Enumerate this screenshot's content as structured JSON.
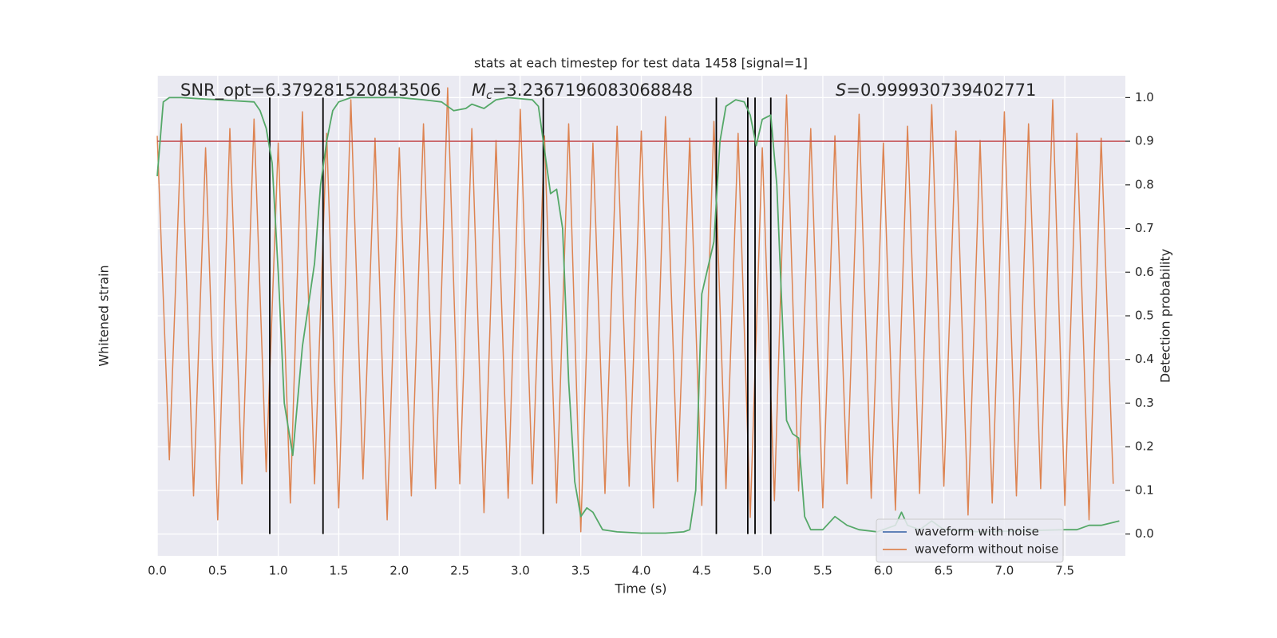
{
  "chart_data": {
    "type": "line",
    "title": "stats at each timestep for test data 1458 [signal=1]",
    "xlabel": "Time (s)",
    "ylabel": "Whitened strain",
    "y2label": "Detection probability",
    "xlim": [
      0,
      8
    ],
    "xticks": [
      {
        "value": 0,
        "label": "0.0"
      },
      0.5,
      {
        "value": 1,
        "label": "1.0"
      },
      1.5,
      {
        "value": 2,
        "label": "2.0"
      },
      2.5,
      {
        "value": 3,
        "label": "3.0"
      },
      3.5,
      {
        "value": 4,
        "label": "4.0"
      },
      4.5,
      {
        "value": 5,
        "label": "5.0"
      },
      5.5,
      {
        "value": 6,
        "label": "6.0"
      },
      6.5,
      {
        "value": 7,
        "label": "7.0"
      },
      7.5
    ],
    "ylim": [
      -1,
      1
    ],
    "y2lim": [
      -0.05,
      1.05
    ],
    "y2ticks": [
      {
        "value": 0,
        "label": "0.0"
      },
      0.1,
      0.2,
      0.3,
      0.4,
      0.5,
      0.6,
      0.7,
      0.8,
      0.9,
      {
        "value": 1,
        "label": "1.0"
      }
    ],
    "grid": true,
    "legend": "lower right",
    "series": [
      {
        "name": "waveform with noise",
        "color": "#4c72b0"
      },
      {
        "name": "waveform without noise",
        "color": "#dd8452",
        "x": [
          0.0,
          0.1,
          0.2,
          0.3,
          0.4,
          0.5,
          0.6,
          0.7,
          0.8,
          0.9,
          1.0,
          1.1,
          1.2,
          1.3,
          1.4,
          1.5,
          1.6,
          1.7,
          1.8,
          1.9,
          2.0,
          2.1,
          2.2,
          2.3,
          2.4,
          2.5,
          2.6,
          2.7,
          2.8,
          2.9,
          3.0,
          3.1,
          3.2,
          3.3,
          3.4,
          3.5,
          3.6,
          3.7,
          3.8,
          3.9,
          4.0,
          4.1,
          4.2,
          4.3,
          4.4,
          4.5,
          4.6,
          4.7,
          4.8,
          4.9,
          5.0,
          5.1,
          5.2,
          5.3,
          5.4,
          5.5,
          5.6,
          5.7,
          5.8,
          5.9,
          6.0,
          6.1,
          6.2,
          6.3,
          6.4,
          6.5,
          6.6,
          6.7,
          6.8,
          6.9,
          7.0,
          7.1,
          7.2,
          7.3,
          7.4,
          7.5,
          7.6,
          7.7,
          7.8,
          7.9
        ],
        "values": [
          0.75,
          -0.6,
          0.8,
          -0.75,
          0.7,
          -0.85,
          0.78,
          -0.7,
          0.82,
          -0.65,
          0.72,
          -0.78,
          0.85,
          -0.7,
          0.76,
          -0.8,
          0.9,
          -0.68,
          0.74,
          -0.85,
          0.7,
          -0.75,
          0.8,
          -0.72,
          0.95,
          -0.7,
          0.78,
          -0.82,
          0.73,
          -0.76,
          0.86,
          -0.7,
          0.75,
          -0.78,
          0.8,
          -0.9,
          0.72,
          -0.74,
          0.79,
          -0.71,
          0.77,
          -0.8,
          0.83,
          -0.69,
          0.74,
          -0.79,
          0.81,
          -0.72,
          0.76,
          -0.84,
          0.7,
          -0.77,
          0.92,
          -0.73,
          0.78,
          -0.8,
          0.75,
          -0.7,
          0.84,
          -0.76,
          0.72,
          -0.81,
          0.79,
          -0.74,
          0.88,
          -0.71,
          0.77,
          -0.83,
          0.73,
          -0.78,
          0.85,
          -0.75,
          0.8,
          -0.72,
          0.9,
          -0.79,
          0.76,
          -0.85,
          0.74,
          -0.7
        ]
      },
      {
        "color": "#55a868",
        "axis": "y2",
        "x": [
          0,
          0.05,
          0.1,
          0.2,
          0.8,
          0.85,
          0.9,
          0.95,
          1.0,
          1.05,
          1.12,
          1.2,
          1.3,
          1.35,
          1.4,
          1.45,
          1.5,
          1.6,
          2.0,
          2.2,
          2.35,
          2.45,
          2.55,
          2.6,
          2.7,
          2.8,
          2.9,
          3.1,
          3.15,
          3.2,
          3.25,
          3.3,
          3.35,
          3.4,
          3.45,
          3.5,
          3.55,
          3.6,
          3.68,
          3.8,
          4.0,
          4.2,
          4.35,
          4.4,
          4.45,
          4.5,
          4.6,
          4.65,
          4.7,
          4.78,
          4.85,
          4.9,
          4.95,
          5.0,
          5.07,
          5.12,
          5.2,
          5.25,
          5.3,
          5.35,
          5.4,
          5.5,
          5.6,
          5.65,
          5.7,
          5.8,
          5.95,
          6.1,
          6.15,
          6.2,
          6.3,
          6.4,
          6.5,
          6.8,
          7.5,
          7.6,
          7.7,
          7.8,
          7.95
        ],
        "values": [
          0.82,
          0.99,
          1.0,
          1.0,
          0.99,
          0.97,
          0.93,
          0.85,
          0.6,
          0.3,
          0.18,
          0.43,
          0.62,
          0.8,
          0.9,
          0.97,
          0.99,
          1.0,
          1.0,
          0.995,
          0.99,
          0.97,
          0.975,
          0.985,
          0.975,
          0.995,
          1.0,
          0.995,
          0.98,
          0.88,
          0.78,
          0.79,
          0.7,
          0.35,
          0.12,
          0.04,
          0.06,
          0.05,
          0.01,
          0.005,
          0.002,
          0.002,
          0.005,
          0.01,
          0.1,
          0.55,
          0.67,
          0.9,
          0.98,
          0.995,
          0.99,
          0.96,
          0.89,
          0.95,
          0.96,
          0.8,
          0.26,
          0.23,
          0.22,
          0.04,
          0.01,
          0.01,
          0.04,
          0.03,
          0.02,
          0.01,
          0.005,
          0.02,
          0.05,
          0.02,
          0.01,
          0.03,
          0.01,
          0.005,
          0.01,
          0.01,
          0.02,
          0.02,
          0.03
        ]
      }
    ],
    "hlines": [
      {
        "value": 0.9,
        "color": "#c44e52"
      }
    ],
    "vlines": {
      "color": "#000000",
      "values": [
        0.93,
        1.37,
        3.19,
        4.62,
        4.88,
        4.94,
        5.07
      ]
    },
    "annotations": [
      {
        "text": "SNR_opt=6.379281520843506"
      },
      {
        "symbol": "M",
        "subscript": "c",
        "text": "=3.2367196083068848"
      },
      {
        "symbol": "S",
        "text": "=0.999930739402771"
      }
    ]
  }
}
